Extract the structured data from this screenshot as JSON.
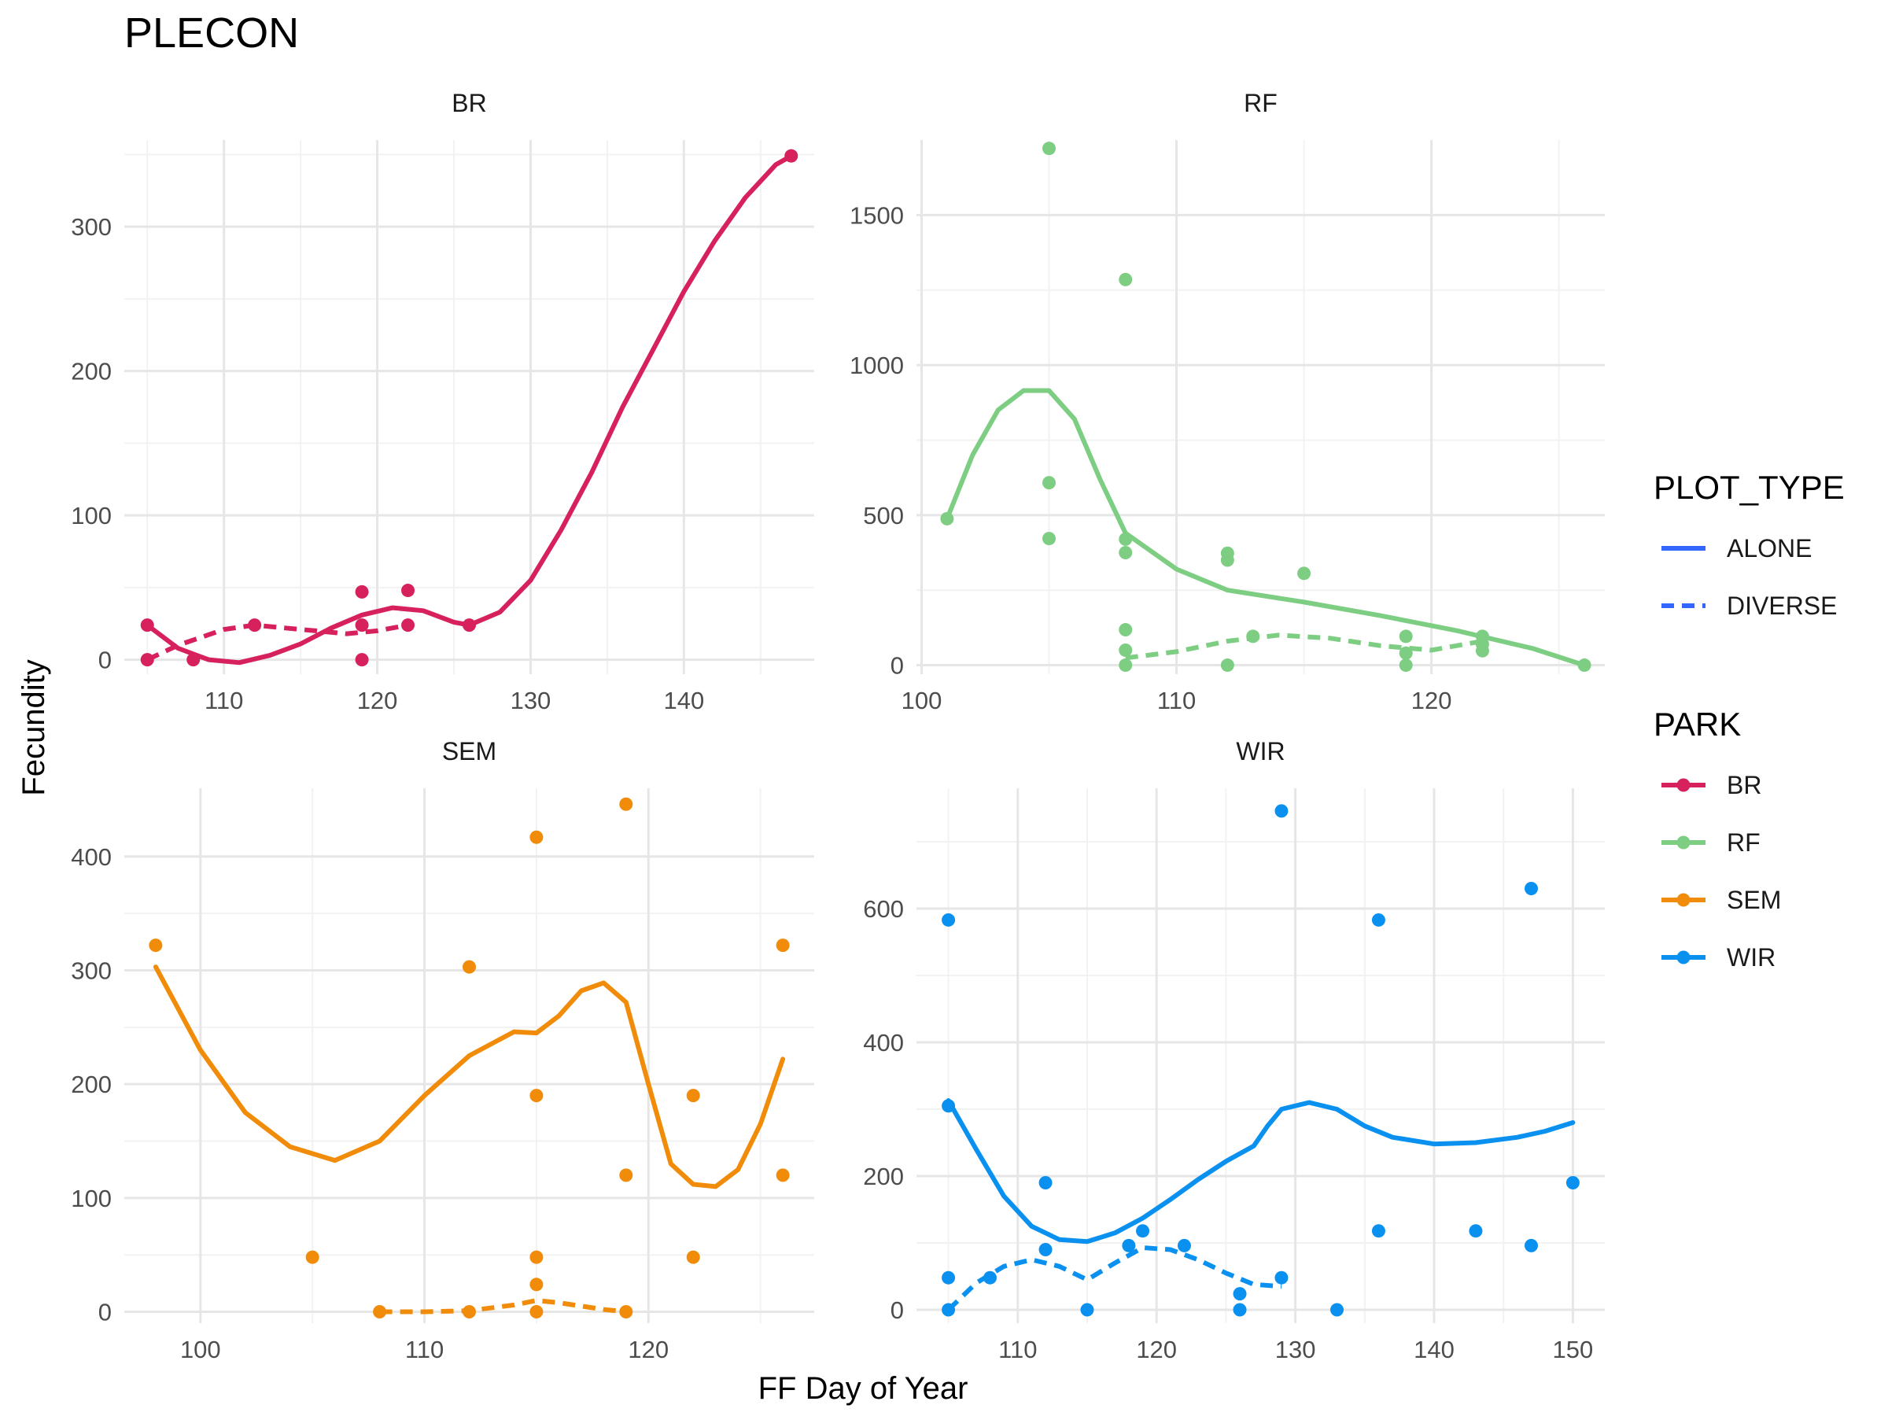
{
  "chart_data": {
    "type": "scatter",
    "title": "PLECON",
    "xlabel": "FF Day of Year",
    "ylabel": "Fecundity",
    "grid": true,
    "legend_placement": "right",
    "legend": {
      "plot_type_title": "PLOT_TYPE",
      "plot_types": [
        "ALONE",
        "DIVERSE"
      ],
      "park_title": "PARK",
      "parks": [
        {
          "name": "BR",
          "color": "#d6215d"
        },
        {
          "name": "RF",
          "color": "#7dce82"
        },
        {
          "name": "SEM",
          "color": "#f08c0a"
        },
        {
          "name": "WIR",
          "color": "#0a91f0"
        }
      ],
      "plot_type_color": "#3366ff"
    },
    "panels": [
      {
        "name": "BR",
        "color": "#d6215d",
        "xlim": [
          103.5,
          148.5
        ],
        "ylim": [
          -10,
          360
        ],
        "xticks": [
          110,
          120,
          130,
          140
        ],
        "xminor": [
          105,
          115,
          125,
          135,
          145
        ],
        "yticks": [
          0,
          100,
          200,
          300
        ],
        "yminor": [
          50,
          150,
          250,
          350
        ],
        "points": [
          [
            105,
            24
          ],
          [
            105,
            0
          ],
          [
            108,
            0
          ],
          [
            112,
            24
          ],
          [
            119,
            47
          ],
          [
            119,
            24
          ],
          [
            119,
            0
          ],
          [
            122,
            48
          ],
          [
            122,
            24
          ],
          [
            126,
            24
          ],
          [
            147,
            349
          ]
        ],
        "alone_line": [
          [
            105,
            24
          ],
          [
            107,
            8
          ],
          [
            109,
            0
          ],
          [
            111,
            -2
          ],
          [
            113,
            3
          ],
          [
            115,
            11
          ],
          [
            117,
            22
          ],
          [
            119,
            31
          ],
          [
            121,
            36
          ],
          [
            123,
            34
          ],
          [
            125,
            26
          ],
          [
            126,
            24
          ],
          [
            128,
            33
          ],
          [
            130,
            55
          ],
          [
            132,
            90
          ],
          [
            134,
            130
          ],
          [
            136,
            175
          ],
          [
            138,
            215
          ],
          [
            140,
            255
          ],
          [
            142,
            290
          ],
          [
            144,
            320
          ],
          [
            146,
            343
          ],
          [
            147,
            349
          ]
        ],
        "diverse_line": [
          [
            105,
            0
          ],
          [
            107,
            10
          ],
          [
            110,
            21
          ],
          [
            112,
            24
          ],
          [
            114,
            22
          ],
          [
            116,
            20
          ],
          [
            118,
            18
          ],
          [
            120,
            20
          ],
          [
            122,
            24
          ]
        ]
      },
      {
        "name": "RF",
        "color": "#7dce82",
        "xlim": [
          99.8,
          126.8
        ],
        "ylim": [
          -30,
          1750
        ],
        "xticks": [
          100,
          110,
          120
        ],
        "xminor": [
          105,
          115,
          125
        ],
        "yticks": [
          0,
          500,
          1000,
          1500
        ],
        "yminor": [
          250,
          750,
          1250
        ],
        "points": [
          [
            101,
            488
          ],
          [
            105,
            1722
          ],
          [
            105,
            608
          ],
          [
            105,
            422
          ],
          [
            108,
            1285
          ],
          [
            108,
            420
          ],
          [
            108,
            375
          ],
          [
            108,
            118
          ],
          [
            108,
            50
          ],
          [
            108,
            0
          ],
          [
            112,
            373
          ],
          [
            112,
            350
          ],
          [
            112,
            0
          ],
          [
            113,
            96
          ],
          [
            115,
            306
          ],
          [
            119,
            96
          ],
          [
            119,
            40
          ],
          [
            119,
            0
          ],
          [
            122,
            96
          ],
          [
            122,
            70
          ],
          [
            122,
            48
          ],
          [
            126,
            0
          ]
        ],
        "alone_line": [
          [
            101,
            488
          ],
          [
            102,
            700
          ],
          [
            103,
            850
          ],
          [
            104,
            915
          ],
          [
            105,
            915
          ],
          [
            106,
            820
          ],
          [
            107,
            620
          ],
          [
            108,
            440
          ],
          [
            110,
            320
          ],
          [
            112,
            250
          ],
          [
            115,
            210
          ],
          [
            118,
            165
          ],
          [
            121,
            115
          ],
          [
            124,
            55
          ],
          [
            126,
            0
          ]
        ],
        "diverse_line": [
          [
            108,
            24
          ],
          [
            110,
            45
          ],
          [
            112,
            80
          ],
          [
            114,
            100
          ],
          [
            116,
            90
          ],
          [
            118,
            65
          ],
          [
            120,
            50
          ],
          [
            122,
            80
          ]
        ]
      },
      {
        "name": "SEM",
        "color": "#f08c0a",
        "xlim": [
          96.6,
          127.4
        ],
        "ylim": [
          -10,
          460
        ],
        "xticks": [
          100,
          110,
          120
        ],
        "xminor": [
          105,
          115,
          125
        ],
        "yticks": [
          0,
          100,
          200,
          300,
          400
        ],
        "yminor": [
          50,
          150,
          250,
          350
        ],
        "points": [
          [
            98,
            322
          ],
          [
            105,
            48
          ],
          [
            108,
            0
          ],
          [
            112,
            303
          ],
          [
            112,
            0
          ],
          [
            115,
            417
          ],
          [
            115,
            190
          ],
          [
            115,
            48
          ],
          [
            115,
            24
          ],
          [
            115,
            0
          ],
          [
            119,
            446
          ],
          [
            119,
            120
          ],
          [
            119,
            0
          ],
          [
            122,
            190
          ],
          [
            122,
            48
          ],
          [
            126,
            322
          ],
          [
            126,
            120
          ]
        ],
        "alone_line": [
          [
            98,
            303
          ],
          [
            100,
            230
          ],
          [
            102,
            175
          ],
          [
            104,
            145
          ],
          [
            106,
            133
          ],
          [
            108,
            150
          ],
          [
            110,
            190
          ],
          [
            112,
            225
          ],
          [
            114,
            246
          ],
          [
            115,
            245
          ],
          [
            116,
            260
          ],
          [
            117,
            282
          ],
          [
            118,
            289
          ],
          [
            119,
            272
          ],
          [
            120,
            200
          ],
          [
            121,
            130
          ],
          [
            122,
            112
          ],
          [
            123,
            110
          ],
          [
            124,
            125
          ],
          [
            125,
            165
          ],
          [
            126,
            222
          ]
        ],
        "diverse_line": [
          [
            108,
            0
          ],
          [
            110,
            0
          ],
          [
            112,
            1
          ],
          [
            114,
            6
          ],
          [
            115,
            10
          ],
          [
            116,
            8
          ],
          [
            117,
            5
          ],
          [
            118,
            2
          ],
          [
            119,
            0
          ]
        ]
      },
      {
        "name": "WIR",
        "color": "#0a91f0",
        "xlim": [
          102.7,
          152.3
        ],
        "ylim": [
          -20,
          780
        ],
        "xticks": [
          110,
          120,
          130,
          140,
          150
        ],
        "xminor": [
          105,
          115,
          125,
          135,
          145
        ],
        "yticks": [
          0,
          200,
          400,
          600
        ],
        "yminor": [
          100,
          300,
          500,
          700
        ],
        "points": [
          [
            105,
            583
          ],
          [
            105,
            305
          ],
          [
            105,
            48
          ],
          [
            105,
            0
          ],
          [
            108,
            48
          ],
          [
            112,
            190
          ],
          [
            112,
            90
          ],
          [
            115,
            0
          ],
          [
            118,
            96
          ],
          [
            119,
            118
          ],
          [
            122,
            96
          ],
          [
            126,
            24
          ],
          [
            126,
            0
          ],
          [
            129,
            746
          ],
          [
            129,
            48
          ],
          [
            133,
            0
          ],
          [
            136,
            583
          ],
          [
            136,
            118
          ],
          [
            143,
            118
          ],
          [
            147,
            630
          ],
          [
            147,
            96
          ],
          [
            150,
            190
          ]
        ],
        "alone_line": [
          [
            105,
            313
          ],
          [
            107,
            240
          ],
          [
            109,
            170
          ],
          [
            111,
            125
          ],
          [
            113,
            105
          ],
          [
            115,
            102
          ],
          [
            117,
            115
          ],
          [
            119,
            137
          ],
          [
            121,
            165
          ],
          [
            123,
            195
          ],
          [
            125,
            222
          ],
          [
            127,
            245
          ],
          [
            128,
            275
          ],
          [
            129,
            300
          ],
          [
            131,
            310
          ],
          [
            133,
            300
          ],
          [
            135,
            275
          ],
          [
            137,
            258
          ],
          [
            140,
            248
          ],
          [
            143,
            250
          ],
          [
            146,
            258
          ],
          [
            148,
            267
          ],
          [
            150,
            280
          ]
        ],
        "diverse_line": [
          [
            105,
            0
          ],
          [
            107,
            40
          ],
          [
            109,
            65
          ],
          [
            111,
            75
          ],
          [
            113,
            65
          ],
          [
            115,
            45
          ],
          [
            117,
            70
          ],
          [
            119,
            93
          ],
          [
            121,
            90
          ],
          [
            123,
            75
          ],
          [
            125,
            55
          ],
          [
            127,
            38
          ],
          [
            129,
            35
          ]
        ]
      }
    ]
  }
}
